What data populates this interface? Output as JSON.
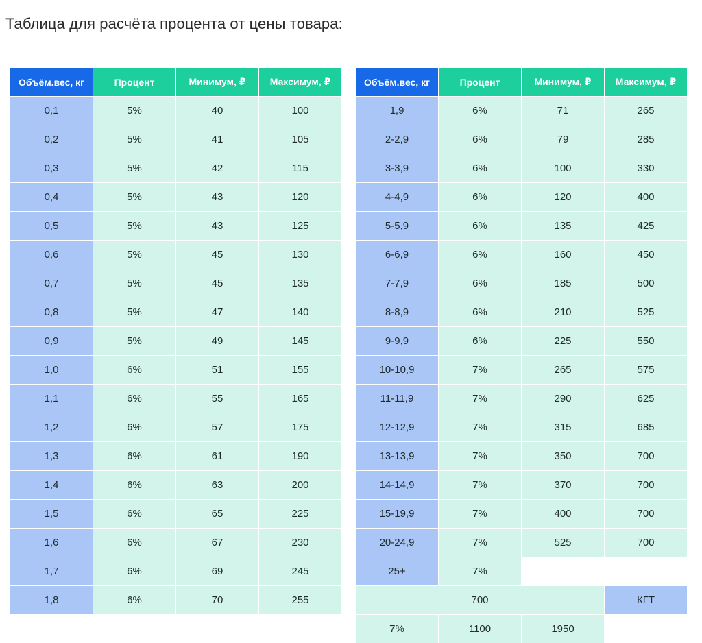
{
  "heading": "Таблица для расчёта процента от цены товара:",
  "columns": [
    "Объём.вес, кг",
    "Процент",
    "Минимум, ₽",
    "Максимум, ₽"
  ],
  "colors": {
    "header_first": "#1769e8",
    "header_other": "#1ccf9c",
    "weight_cell": "#aac6f6",
    "value_cell": "#d2f4ea"
  },
  "left_table": {
    "rows": [
      [
        "0,1",
        "5%",
        "40",
        "100"
      ],
      [
        "0,2",
        "5%",
        "41",
        "105"
      ],
      [
        "0,3",
        "5%",
        "42",
        "115"
      ],
      [
        "0,4",
        "5%",
        "43",
        "120"
      ],
      [
        "0,5",
        "5%",
        "43",
        "125"
      ],
      [
        "0,6",
        "5%",
        "45",
        "130"
      ],
      [
        "0,7",
        "5%",
        "45",
        "135"
      ],
      [
        "0,8",
        "5%",
        "47",
        "140"
      ],
      [
        "0,9",
        "5%",
        "49",
        "145"
      ],
      [
        "1,0",
        "6%",
        "51",
        "155"
      ],
      [
        "1,1",
        "6%",
        "55",
        "165"
      ],
      [
        "1,2",
        "6%",
        "57",
        "175"
      ],
      [
        "1,3",
        "6%",
        "61",
        "190"
      ],
      [
        "1,4",
        "6%",
        "63",
        "200"
      ],
      [
        "1,5",
        "6%",
        "65",
        "225"
      ],
      [
        "1,6",
        "6%",
        "67",
        "230"
      ],
      [
        "1,7",
        "6%",
        "69",
        "245"
      ],
      [
        "1,8",
        "6%",
        "70",
        "255"
      ]
    ]
  },
  "right_table": {
    "rows": [
      [
        "1,9",
        "6%",
        "71",
        "265"
      ],
      [
        "2-2,9",
        "6%",
        "79",
        "285"
      ],
      [
        "3-3,9",
        "6%",
        "100",
        "330"
      ],
      [
        "4-4,9",
        "6%",
        "120",
        "400"
      ],
      [
        "5-5,9",
        "6%",
        "135",
        "425"
      ],
      [
        "6-6,9",
        "6%",
        "160",
        "450"
      ],
      [
        "7-7,9",
        "6%",
        "185",
        "500"
      ],
      [
        "8-8,9",
        "6%",
        "210",
        "525"
      ],
      [
        "9-9,9",
        "6%",
        "225",
        "550"
      ],
      [
        "10-10,9",
        "7%",
        "265",
        "575"
      ],
      [
        "11-11,9",
        "7%",
        "290",
        "625"
      ],
      [
        "12-12,9",
        "7%",
        "315",
        "685"
      ],
      [
        "13-13,9",
        "7%",
        "350",
        "700"
      ],
      [
        "14-14,9",
        "7%",
        "370",
        "700"
      ],
      [
        "15-19,9",
        "7%",
        "400",
        "700"
      ],
      [
        "20-24,9",
        "7%",
        "525",
        "700"
      ],
      [
        "25+",
        "7%",
        "700"
      ],
      [
        "КГТ",
        "7%",
        "1100",
        "1950"
      ]
    ]
  }
}
